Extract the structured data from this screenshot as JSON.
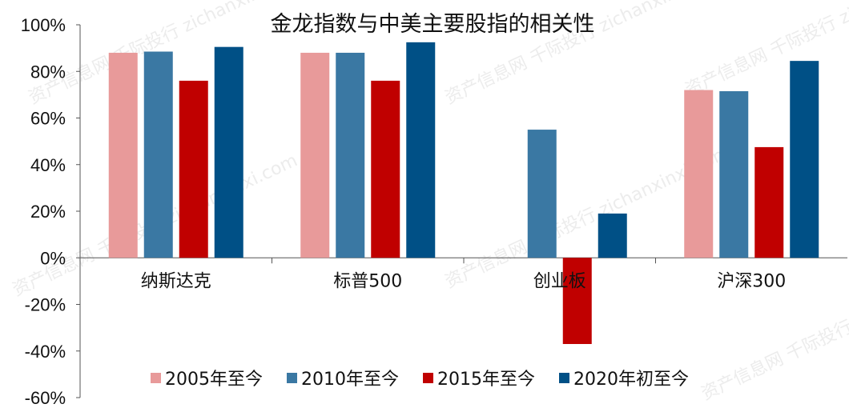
{
  "chart_data": {
    "type": "bar",
    "title": "金龙指数与中美主要股指的相关性",
    "categories": [
      "纳斯达克",
      "标普500",
      "创业板",
      "沪深300"
    ],
    "series": [
      {
        "name": "2005年至今",
        "color": "#E89A9A",
        "values": [
          0.88,
          0.88,
          null,
          0.72
        ]
      },
      {
        "name": "2010年至今",
        "color": "#3A78A3",
        "values": [
          0.885,
          0.88,
          0.55,
          0.715
        ]
      },
      {
        "name": "2015年至今",
        "color": "#C00000",
        "values": [
          0.76,
          0.76,
          -0.37,
          0.475
        ]
      },
      {
        "name": "2020年初至今",
        "color": "#005086",
        "values": [
          0.905,
          0.925,
          0.19,
          0.845
        ]
      }
    ],
    "yticks": [
      "100%",
      "80%",
      "60%",
      "40%",
      "20%",
      "0%",
      "-20%",
      "-40%",
      "-60%"
    ],
    "ylim": [
      -0.6,
      1.0
    ],
    "legend_position": "bottom",
    "grid": false
  },
  "watermark": "资产信息网 千际投行 zichanxinxi.com"
}
